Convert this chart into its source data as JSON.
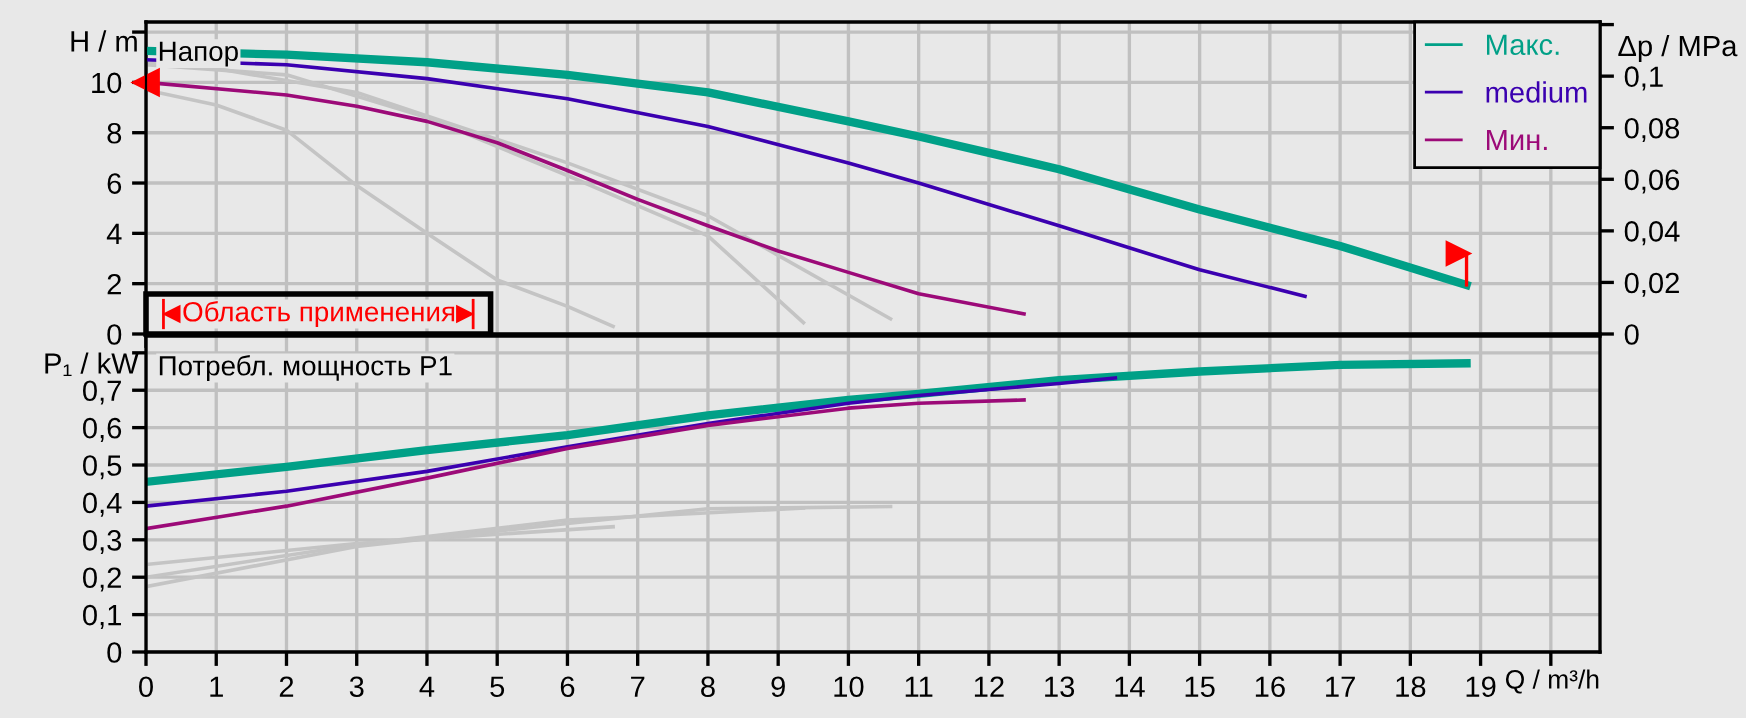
{
  "chart_data": [
    {
      "type": "line",
      "title": "Напор",
      "ylabel": "H / m",
      "y2label": "Δp / MPa",
      "annotations": [
        "Область применения"
      ],
      "xlim": [
        0,
        20.7
      ],
      "xticks": [
        0,
        1,
        2,
        3,
        4,
        5,
        6,
        7,
        8,
        9,
        10,
        11,
        12,
        13,
        14,
        15,
        16,
        17,
        18,
        19,
        20
      ],
      "ylim": [
        0,
        12.4
      ],
      "yticks": [
        0,
        2,
        4,
        6,
        8,
        10,
        {
          "value": 12,
          "label": null
        }
      ],
      "y2lim": [
        0,
        0.121
      ],
      "y2ticks": [
        0,
        {
          "value": 0.02,
          "label": "0,02"
        },
        {
          "value": 0.04,
          "label": "0,04"
        },
        {
          "value": 0.06,
          "label": "0,06"
        },
        {
          "value": 0.08,
          "label": "0,08"
        },
        {
          "value": 0.1,
          "label": "0,1"
        },
        {
          "value": 0.12,
          "label": null
        }
      ],
      "tick_labels": "y",
      "grid": true,
      "legend": "top right",
      "series": [
        {
          "name": "Макс.",
          "color": "#00a087",
          "x": [
            0,
            2,
            4,
            6,
            8,
            10,
            11,
            13,
            15,
            17,
            18.8
          ],
          "values": [
            11.25,
            11.1,
            10.8,
            10.3,
            9.6,
            8.45,
            7.85,
            6.55,
            4.95,
            3.5,
            1.95
          ]
        },
        {
          "name": "medium",
          "color": "#3b00b0",
          "x": [
            0,
            2,
            4,
            6,
            8,
            10,
            11,
            13,
            15,
            16.5
          ],
          "values": [
            10.9,
            10.7,
            10.15,
            9.35,
            8.25,
            6.8,
            6.0,
            4.3,
            2.55,
            1.5
          ]
        },
        {
          "name": "Мин.",
          "color": "#9c0a78",
          "x": [
            0,
            2,
            3,
            4,
            5,
            6,
            7,
            8,
            9,
            10,
            11,
            12.5
          ],
          "values": [
            10.0,
            9.5,
            9.05,
            8.45,
            7.6,
            6.5,
            5.35,
            4.3,
            3.3,
            2.45,
            1.6,
            0.8
          ]
        },
        {
          "color": "#c4c4c4",
          "x": [
            0,
            1,
            2,
            3,
            4,
            5,
            6,
            6.65
          ],
          "values": [
            9.7,
            9.1,
            8.1,
            5.9,
            4.0,
            2.15,
            1.1,
            0.3
          ]
        },
        {
          "color": "#c4c4c4",
          "x": [
            0,
            2,
            4,
            6,
            8,
            9.36
          ],
          "values": [
            10.7,
            10.3,
            8.6,
            6.3,
            3.9,
            0.45
          ]
        },
        {
          "color": "#c4c4c4",
          "x": [
            0,
            1,
            3,
            6,
            8,
            10.6
          ],
          "values": [
            10.8,
            10.55,
            9.6,
            6.8,
            4.7,
            0.6
          ]
        }
      ]
    },
    {
      "type": "line",
      "title": "Потребл. мощность P1",
      "ylabel": "P₁ / kW",
      "xlabel": "Q / m³/h",
      "xlim": [
        0,
        20.7
      ],
      "xticks": [
        0,
        1,
        2,
        3,
        4,
        5,
        6,
        7,
        8,
        9,
        10,
        11,
        12,
        13,
        14,
        15,
        16,
        17,
        18,
        19,
        {
          "value": 20,
          "label": null
        }
      ],
      "ylim": [
        0,
        0.845
      ],
      "yticks": [
        0,
        {
          "value": 0.1,
          "label": "0,1"
        },
        {
          "value": 0.2,
          "label": "0,2"
        },
        {
          "value": 0.3,
          "label": "0,3"
        },
        {
          "value": 0.4,
          "label": "0,4"
        },
        {
          "value": 0.5,
          "label": "0,5"
        },
        {
          "value": 0.6,
          "label": "0,6"
        },
        {
          "value": 0.7,
          "label": "0,7"
        },
        {
          "value": 0.8,
          "label": null
        }
      ],
      "grid": true,
      "series": [
        {
          "color": "#00a087",
          "x": [
            0,
            2,
            4,
            6,
            8,
            10,
            11,
            13,
            15,
            17,
            18.8
          ],
          "values": [
            0.455,
            0.495,
            0.54,
            0.58,
            0.633,
            0.674,
            0.69,
            0.727,
            0.75,
            0.768,
            0.772
          ]
        },
        {
          "color": "#3b00b0",
          "x": [
            0,
            2,
            4,
            6,
            8,
            10,
            11,
            13,
            13.8
          ],
          "values": [
            0.39,
            0.43,
            0.483,
            0.549,
            0.611,
            0.665,
            0.686,
            0.718,
            0.733
          ]
        },
        {
          "color": "#9c0a78",
          "x": [
            0,
            2,
            4,
            6,
            8,
            10,
            11,
            12.5
          ],
          "values": [
            0.33,
            0.39,
            0.465,
            0.544,
            0.606,
            0.652,
            0.665,
            0.674
          ]
        },
        {
          "color": "#c4c4c4",
          "x": [
            0,
            3,
            6.65
          ],
          "values": [
            0.234,
            0.29,
            0.335
          ]
        },
        {
          "color": "#c4c4c4",
          "x": [
            0,
            3,
            6,
            9.36
          ],
          "values": [
            0.2,
            0.287,
            0.353,
            0.385
          ]
        },
        {
          "color": "#c4c4c4",
          "x": [
            0,
            3,
            6,
            8,
            10.6
          ],
          "values": [
            0.175,
            0.282,
            0.344,
            0.383,
            0.389
          ]
        }
      ]
    }
  ]
}
